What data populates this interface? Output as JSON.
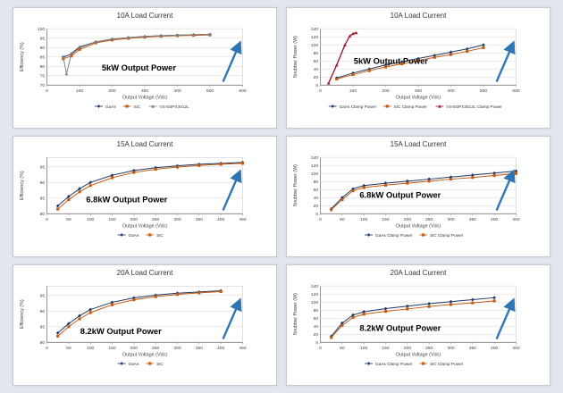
{
  "page": {
    "background": "#e2e7ee",
    "panel_background": "#ffffff",
    "arrow_color": "#2e75b6",
    "grid_color": "#d9d9d9"
  },
  "chart_data": [
    {
      "type": "line",
      "title": "10A Load Current",
      "annotation": "5kW Output Power",
      "annotation_pos": [
        0.28,
        0.74
      ],
      "xlabel": "Output Voltage (Vdc)",
      "ylabel": "Efficiency (%)",
      "xlim": [
        0,
        600
      ],
      "xticks": [
        0,
        100,
        200,
        300,
        400,
        500,
        600
      ],
      "ylim": [
        70,
        100
      ],
      "yticks": [
        70,
        75,
        80,
        85,
        90,
        95,
        100
      ],
      "grid": true,
      "legend_position": "bottom",
      "arrow": true,
      "series": [
        {
          "name": "GaAs",
          "color": "#1f3864",
          "marker": "diamond",
          "width": 1,
          "x": [
            50,
            75,
            100,
            150,
            200,
            250,
            300,
            350,
            400,
            450,
            500
          ],
          "y": [
            85,
            86.5,
            90,
            93,
            94.5,
            95.3,
            95.9,
            96.3,
            96.6,
            96.8,
            97
          ]
        },
        {
          "name": "SiC",
          "color": "#c55a11",
          "marker": "square",
          "width": 1,
          "x": [
            50,
            75,
            100,
            150,
            200,
            250,
            300,
            350,
            400,
            450,
            500
          ],
          "y": [
            84,
            85.5,
            89,
            92.5,
            94,
            94.9,
            95.5,
            96,
            96.3,
            96.5,
            96.7
          ]
        },
        {
          "name": "VS-E5PX3012L",
          "color": "#808080",
          "marker": "triangle",
          "width": 1,
          "x": [
            50,
            60,
            75,
            100,
            150,
            200,
            250,
            300,
            350,
            400,
            450,
            500
          ],
          "y": [
            85,
            76,
            87,
            90.5,
            93,
            94.5,
            95.3,
            95.9,
            96.3,
            96.6,
            96.8,
            97
          ]
        }
      ]
    },
    {
      "type": "line",
      "title": "10A Load Current",
      "annotation": "5kW Output Power",
      "annotation_pos": [
        0.17,
        0.62
      ],
      "xlabel": "Output Voltage (Vdc)",
      "ylabel": "Snubber Power (W)",
      "xlim": [
        0,
        600
      ],
      "xticks": [
        0,
        100,
        200,
        300,
        400,
        500,
        600
      ],
      "ylim": [
        0,
        140
      ],
      "yticks": [
        0,
        20,
        40,
        60,
        80,
        100,
        120,
        140
      ],
      "grid": true,
      "legend_position": "bottom",
      "arrow": true,
      "series": [
        {
          "name": "GaAs Clamp Power",
          "color": "#1f3864",
          "marker": "diamond",
          "width": 1,
          "x": [
            50,
            100,
            150,
            200,
            250,
            300,
            350,
            400,
            450,
            500
          ],
          "y": [
            18,
            30,
            40,
            50,
            58,
            66,
            74,
            82,
            90,
            100
          ]
        },
        {
          "name": "SiC Clamp Power",
          "color": "#c55a11",
          "marker": "square",
          "width": 1,
          "x": [
            50,
            100,
            150,
            200,
            250,
            300,
            350,
            400,
            450,
            500
          ],
          "y": [
            15,
            26,
            36,
            45,
            53,
            61,
            69,
            76,
            84,
            93
          ]
        },
        {
          "name": "VS-E5PX3012L Clamp Power",
          "color": "#9c1c31",
          "marker": "triangle",
          "width": 1.4,
          "x": [
            25,
            50,
            75,
            90,
            100,
            110
          ],
          "y": [
            5,
            50,
            100,
            122,
            128,
            130
          ]
        }
      ]
    },
    {
      "type": "line",
      "title": "15A Load Current",
      "annotation": "6.8kW Output Power",
      "annotation_pos": [
        0.2,
        0.8
      ],
      "xlabel": "Output Voltage (Vdc)",
      "ylabel": "Efficiency (%)",
      "xlim": [
        0,
        450
      ],
      "xticks": [
        0,
        50,
        100,
        150,
        200,
        250,
        300,
        350,
        400,
        450
      ],
      "ylim": [
        80,
        98
      ],
      "yticks": [
        80,
        85,
        90,
        95
      ],
      "grid": true,
      "legend_position": "bottom",
      "arrow": true,
      "series": [
        {
          "name": "GaAs",
          "color": "#1f3864",
          "marker": "diamond",
          "width": 1,
          "x": [
            25,
            50,
            75,
            100,
            150,
            200,
            250,
            300,
            350,
            400,
            450
          ],
          "y": [
            82.5,
            85.5,
            88,
            90,
            92.3,
            93.8,
            94.7,
            95.3,
            95.8,
            96.1,
            96.4
          ]
        },
        {
          "name": "SiC",
          "color": "#c55a11",
          "marker": "square",
          "width": 1,
          "x": [
            25,
            50,
            75,
            100,
            150,
            200,
            250,
            300,
            350,
            400,
            450
          ],
          "y": [
            81.5,
            84.5,
            87,
            89,
            91.5,
            93.2,
            94.2,
            94.9,
            95.4,
            95.8,
            96.1
          ]
        }
      ]
    },
    {
      "type": "line",
      "title": "15A Load Current",
      "annotation": "6.8kW Output Power",
      "annotation_pos": [
        0.2,
        0.72
      ],
      "xlabel": "Output Voltage (Vdc)",
      "ylabel": "Snubber Power (W)",
      "xlim": [
        0,
        450
      ],
      "xticks": [
        0,
        50,
        100,
        150,
        200,
        250,
        300,
        350,
        400,
        450
      ],
      "ylim": [
        0,
        140
      ],
      "yticks": [
        0,
        20,
        40,
        60,
        80,
        100,
        120,
        140
      ],
      "grid": true,
      "legend_position": "bottom",
      "arrow": true,
      "series": [
        {
          "name": "GaAs Clamp Power",
          "color": "#1f3864",
          "marker": "diamond",
          "width": 1,
          "x": [
            25,
            50,
            75,
            100,
            150,
            200,
            250,
            300,
            350,
            400,
            450
          ],
          "y": [
            12,
            40,
            62,
            70,
            76,
            81,
            86,
            91,
            96,
            101,
            106
          ]
        },
        {
          "name": "SiC Clamp Power",
          "color": "#c55a11",
          "marker": "square",
          "width": 1,
          "x": [
            25,
            50,
            75,
            100,
            150,
            200,
            250,
            300,
            350,
            400,
            450
          ],
          "y": [
            10,
            35,
            57,
            65,
            71,
            76,
            81,
            86,
            90,
            95,
            100
          ]
        }
      ]
    },
    {
      "type": "line",
      "title": "20A Load Current",
      "annotation": "8.2kW Output Power",
      "annotation_pos": [
        0.17,
        0.85
      ],
      "xlabel": "Output Voltage (Vdc)",
      "ylabel": "Efficiency (%)",
      "xlim": [
        0,
        450
      ],
      "xticks": [
        0,
        50,
        100,
        150,
        200,
        250,
        300,
        350,
        400,
        450
      ],
      "ylim": [
        80,
        98
      ],
      "yticks": [
        80,
        85,
        90,
        95
      ],
      "grid": true,
      "legend_position": "bottom",
      "arrow": true,
      "series": [
        {
          "name": "GaAs",
          "color": "#1f3864",
          "marker": "diamond",
          "width": 1,
          "x": [
            25,
            50,
            75,
            100,
            150,
            200,
            250,
            300,
            350,
            400
          ],
          "y": [
            83,
            86,
            88.5,
            90.5,
            92.8,
            94.2,
            95.1,
            95.7,
            96.1,
            96.5
          ]
        },
        {
          "name": "SiC",
          "color": "#c55a11",
          "marker": "square",
          "width": 1,
          "x": [
            25,
            50,
            75,
            100,
            150,
            200,
            250,
            300,
            350,
            400
          ],
          "y": [
            82,
            85,
            87.5,
            89.5,
            92,
            93.6,
            94.6,
            95.3,
            95.8,
            96.2
          ]
        }
      ]
    },
    {
      "type": "line",
      "title": "20A Load Current",
      "annotation": "8.2kW Output Power",
      "annotation_pos": [
        0.2,
        0.8
      ],
      "xlabel": "Output Voltage (Vdc)",
      "ylabel": "Snubber Power (W)",
      "xlim": [
        0,
        450
      ],
      "xticks": [
        0,
        50,
        100,
        150,
        200,
        250,
        300,
        350,
        400,
        450
      ],
      "ylim": [
        0,
        140
      ],
      "yticks": [
        0,
        20,
        40,
        60,
        80,
        100,
        120,
        140
      ],
      "grid": true,
      "legend_position": "bottom",
      "arrow": true,
      "series": [
        {
          "name": "GaAs Clamp Power",
          "color": "#1f3864",
          "marker": "diamond",
          "width": 1,
          "x": [
            25,
            50,
            75,
            100,
            150,
            200,
            250,
            300,
            350,
            400
          ],
          "y": [
            15,
            48,
            68,
            76,
            84,
            90,
            96,
            101,
            106,
            111
          ]
        },
        {
          "name": "SiC Clamp Power",
          "color": "#c55a11",
          "marker": "square",
          "width": 1,
          "x": [
            25,
            50,
            75,
            100,
            150,
            200,
            250,
            300,
            350,
            400
          ],
          "y": [
            12,
            42,
            62,
            70,
            77,
            83,
            89,
            94,
            98,
            103
          ]
        }
      ]
    }
  ]
}
